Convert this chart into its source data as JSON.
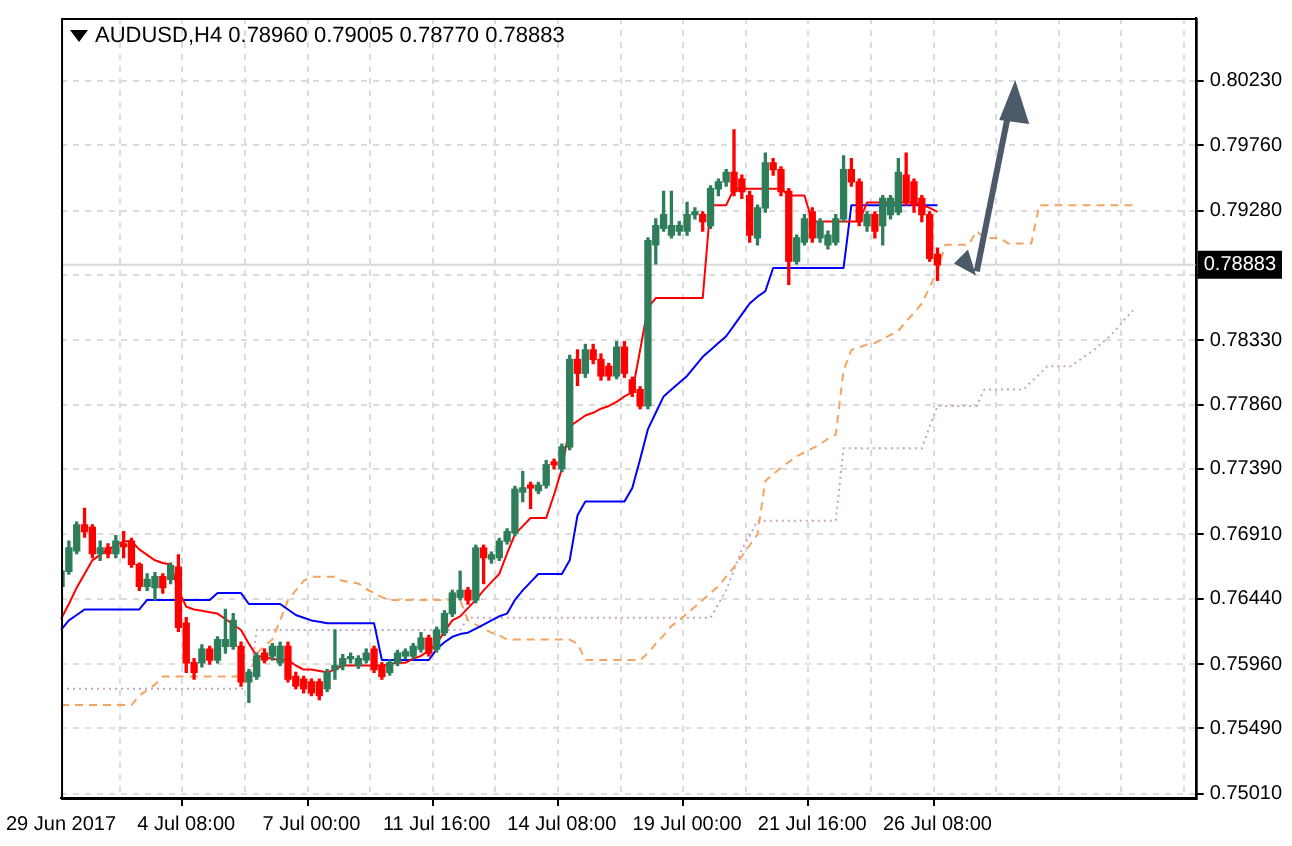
{
  "chart_data": {
    "type": "candlestick",
    "title": "AUDUSD,H4  0.78960 0.79005 0.78770 0.78883",
    "categories": [
      "29 Jun 2017",
      null,
      null,
      null,
      null,
      null,
      null,
      null,
      null,
      null,
      null,
      null,
      null,
      null,
      null,
      null,
      "4 Jul 08:00",
      null,
      null,
      null,
      null,
      null,
      null,
      null,
      null,
      null,
      null,
      null,
      null,
      null,
      null,
      null,
      "7 Jul 00:00",
      null,
      null,
      null,
      null,
      null,
      null,
      null,
      null,
      null,
      null,
      null,
      null,
      null,
      null,
      null,
      "11 Jul 16:00",
      null,
      null,
      null,
      null,
      null,
      null,
      null,
      null,
      null,
      null,
      null,
      null,
      null,
      null,
      null,
      "14 Jul 08:00",
      null,
      null,
      null,
      null,
      null,
      null,
      null,
      null,
      null,
      null,
      null,
      null,
      null,
      null,
      null,
      "19 Jul 00:00",
      null,
      null,
      null,
      null,
      null,
      null,
      null,
      null,
      null,
      null,
      null,
      null,
      null,
      null,
      null,
      "21 Jul 16:00",
      null,
      null,
      null,
      null,
      null,
      null,
      null,
      null,
      null,
      null,
      null,
      null,
      null,
      null,
      null,
      "26 Jul 08:00",
      null,
      null,
      null,
      null,
      null,
      null,
      null,
      null,
      null,
      null,
      null,
      null,
      null,
      null,
      null,
      null,
      null,
      null,
      null,
      null,
      null,
      null,
      null,
      null,
      null,
      null,
      null,
      null,
      null,
      null,
      null,
      null,
      null
    ],
    "ohlc": [
      [
        0.7653,
        0.7668,
        0.765,
        0.7664
      ],
      [
        0.7664,
        0.7686,
        0.7662,
        0.7681
      ],
      [
        0.7679,
        0.77,
        0.7677,
        0.7698
      ],
      [
        0.7698,
        0.771,
        0.7689,
        0.7693
      ],
      [
        0.7696,
        0.7698,
        0.7674,
        0.7677
      ],
      [
        0.7677,
        0.7686,
        0.7672,
        0.7681
      ],
      [
        0.7681,
        0.7684,
        0.7674,
        0.7677
      ],
      [
        0.7677,
        0.769,
        0.7674,
        0.7686
      ],
      [
        0.7684,
        0.7693,
        0.7674,
        0.7682
      ],
      [
        0.7686,
        0.7688,
        0.7667,
        0.7669
      ],
      [
        0.7669,
        0.767,
        0.765,
        0.7653
      ],
      [
        0.7653,
        0.7662,
        0.765,
        0.7658
      ],
      [
        0.7652,
        0.7663,
        0.7643,
        0.766
      ],
      [
        0.766,
        0.7662,
        0.7648,
        0.7652
      ],
      [
        0.7658,
        0.767,
        0.7655,
        0.7668
      ],
      [
        0.7667,
        0.7676,
        0.762,
        0.7623
      ],
      [
        0.7626,
        0.763,
        0.759,
        0.7597
      ],
      [
        0.7597,
        0.76,
        0.7585,
        0.759
      ],
      [
        0.7597,
        0.761,
        0.7594,
        0.7607
      ],
      [
        0.7607,
        0.7609,
        0.7596,
        0.7599
      ],
      [
        0.7599,
        0.7616,
        0.7597,
        0.7614
      ],
      [
        0.7609,
        0.7636,
        0.7604,
        0.7614
      ],
      [
        0.7609,
        0.7633,
        0.7607,
        0.7628
      ],
      [
        0.7609,
        0.7612,
        0.758,
        0.7583
      ],
      [
        0.7583,
        0.7592,
        0.7568,
        0.759
      ],
      [
        0.7587,
        0.7604,
        0.7585,
        0.7602
      ],
      [
        0.7604,
        0.7607,
        0.7597,
        0.7599
      ],
      [
        0.7602,
        0.7611,
        0.7599,
        0.7609
      ],
      [
        0.7597,
        0.7612,
        0.7595,
        0.7609
      ],
      [
        0.7609,
        0.7612,
        0.7583,
        0.7585
      ],
      [
        0.7587,
        0.759,
        0.7578,
        0.758
      ],
      [
        0.7585,
        0.7587,
        0.7575,
        0.7578
      ],
      [
        0.7583,
        0.7585,
        0.7573,
        0.7575
      ],
      [
        0.7583,
        0.7585,
        0.757,
        0.7573
      ],
      [
        0.7578,
        0.7592,
        0.7576,
        0.759
      ],
      [
        0.7592,
        0.7621,
        0.7585,
        0.7595
      ],
      [
        0.7595,
        0.7603,
        0.7592,
        0.76
      ],
      [
        0.76,
        0.7604,
        0.7597,
        0.7601
      ],
      [
        0.7595,
        0.7602,
        0.7593,
        0.76
      ],
      [
        0.7599,
        0.7607,
        0.7597,
        0.7604
      ],
      [
        0.7607,
        0.7609,
        0.759,
        0.7592
      ],
      [
        0.7595,
        0.7597,
        0.7585,
        0.7587
      ],
      [
        0.759,
        0.7599,
        0.7588,
        0.7597
      ],
      [
        0.7597,
        0.7606,
        0.7595,
        0.7604
      ],
      [
        0.7602,
        0.7607,
        0.76,
        0.7605
      ],
      [
        0.7602,
        0.7611,
        0.76,
        0.7609
      ],
      [
        0.7607,
        0.7619,
        0.7605,
        0.7615
      ],
      [
        0.7615,
        0.7617,
        0.7602,
        0.7604
      ],
      [
        0.7607,
        0.7623,
        0.7605,
        0.7621
      ],
      [
        0.7619,
        0.7635,
        0.7617,
        0.7633
      ],
      [
        0.7633,
        0.765,
        0.7631,
        0.7648
      ],
      [
        0.7645,
        0.7664,
        0.7643,
        0.765
      ],
      [
        0.765,
        0.7652,
        0.764,
        0.7643
      ],
      [
        0.7643,
        0.7683,
        0.7641,
        0.7681
      ],
      [
        0.7681,
        0.7683,
        0.7655,
        0.7674
      ],
      [
        0.7673,
        0.7678,
        0.767,
        0.7676
      ],
      [
        0.7674,
        0.7688,
        0.7672,
        0.7686
      ],
      [
        0.7686,
        0.7695,
        0.7684,
        0.7693
      ],
      [
        0.7692,
        0.7726,
        0.769,
        0.7724
      ],
      [
        0.7722,
        0.7737,
        0.7715,
        0.7725
      ],
      [
        0.7727,
        0.7729,
        0.771,
        0.7725
      ],
      [
        0.7723,
        0.7729,
        0.7721,
        0.7727
      ],
      [
        0.7727,
        0.7745,
        0.7725,
        0.7742
      ],
      [
        0.7744,
        0.7746,
        0.7739,
        0.7742
      ],
      [
        0.7739,
        0.7757,
        0.7737,
        0.7755
      ],
      [
        0.7755,
        0.7822,
        0.7753,
        0.7819
      ],
      [
        0.7819,
        0.7826,
        0.78,
        0.7809
      ],
      [
        0.7809,
        0.783,
        0.7806,
        0.7826
      ],
      [
        0.7826,
        0.783,
        0.7816,
        0.7819
      ],
      [
        0.7819,
        0.7823,
        0.7804,
        0.7807
      ],
      [
        0.7814,
        0.7816,
        0.7804,
        0.7807
      ],
      [
        0.7807,
        0.7832,
        0.7805,
        0.7828
      ],
      [
        0.7828,
        0.7832,
        0.7806,
        0.7809
      ],
      [
        0.7804,
        0.7806,
        0.7792,
        0.7795
      ],
      [
        0.7797,
        0.7799,
        0.7783,
        0.7785
      ],
      [
        0.7785,
        0.7908,
        0.7783,
        0.7906
      ],
      [
        0.7903,
        0.7922,
        0.7889,
        0.7917
      ],
      [
        0.7915,
        0.7942,
        0.7913,
        0.7925
      ],
      [
        0.791,
        0.7942,
        0.7908,
        0.7917
      ],
      [
        0.7913,
        0.792,
        0.791,
        0.7917
      ],
      [
        0.7913,
        0.7934,
        0.791,
        0.7925
      ],
      [
        0.7925,
        0.793,
        0.7922,
        0.7927
      ],
      [
        0.7925,
        0.7927,
        0.7913,
        0.792
      ],
      [
        0.7917,
        0.7946,
        0.7915,
        0.7944
      ],
      [
        0.7944,
        0.7951,
        0.7939,
        0.7949
      ],
      [
        0.7949,
        0.7958,
        0.7946,
        0.7956
      ],
      [
        0.7956,
        0.7987,
        0.7939,
        0.7942
      ],
      [
        0.7951,
        0.7954,
        0.7937,
        0.7942
      ],
      [
        0.7939,
        0.7942,
        0.7905,
        0.791
      ],
      [
        0.7908,
        0.7932,
        0.7903,
        0.793
      ],
      [
        0.793,
        0.797,
        0.7927,
        0.7963
      ],
      [
        0.7963,
        0.7966,
        0.7954,
        0.7958
      ],
      [
        0.7958,
        0.796,
        0.7939,
        0.7942
      ],
      [
        0.7942,
        0.7944,
        0.7874,
        0.7891
      ],
      [
        0.7891,
        0.791,
        0.7889,
        0.7908
      ],
      [
        0.7905,
        0.7925,
        0.7903,
        0.7922
      ],
      [
        0.7927,
        0.793,
        0.7905,
        0.7908
      ],
      [
        0.7908,
        0.7922,
        0.7905,
        0.792
      ],
      [
        0.7903,
        0.7913,
        0.79,
        0.791
      ],
      [
        0.7905,
        0.7925,
        0.7903,
        0.7922
      ],
      [
        0.7922,
        0.7968,
        0.792,
        0.7958
      ],
      [
        0.7958,
        0.7966,
        0.7946,
        0.7949
      ],
      [
        0.7949,
        0.7951,
        0.7917,
        0.792
      ],
      [
        0.7917,
        0.7927,
        0.7913,
        0.7925
      ],
      [
        0.7925,
        0.7927,
        0.7908,
        0.7913
      ],
      [
        0.7917,
        0.7939,
        0.7903,
        0.7937
      ],
      [
        0.7925,
        0.7939,
        0.7922,
        0.7937
      ],
      [
        0.7927,
        0.7966,
        0.7925,
        0.7956
      ],
      [
        0.7954,
        0.797,
        0.7932,
        0.7934
      ],
      [
        0.7949,
        0.7951,
        0.7927,
        0.7932
      ],
      [
        0.7937,
        0.7939,
        0.792,
        0.7925
      ],
      [
        0.7925,
        0.7927,
        0.7891,
        0.7893
      ],
      [
        0.7896,
        0.79005,
        0.7877,
        0.78883
      ],
      null,
      null,
      null,
      null,
      null,
      null,
      null,
      null,
      null,
      null,
      null,
      null,
      null,
      null,
      null,
      null,
      null,
      null,
      null,
      null,
      null,
      null,
      null,
      null,
      null,
      null,
      null,
      null,
      null,
      null,
      null,
      null,
      null
    ],
    "colors": [
      "#2e7d5b",
      "#2e7d5b",
      "#2e7d5b",
      "#ff0000",
      "#ff0000",
      "#2e7d5b",
      "#ff0000",
      "#2e7d5b",
      "#ff0000",
      "#ff0000",
      "#ff0000",
      "#2e7d5b",
      "#2e7d5b",
      "#ff0000",
      "#2e7d5b",
      "#ff0000",
      "#ff0000",
      "#ff0000",
      "#2e7d5b",
      "#ff0000",
      "#2e7d5b",
      "#2e7d5b",
      "#2e7d5b",
      "#ff0000",
      "#2e7d5b",
      "#2e7d5b",
      "#ff0000",
      "#2e7d5b",
      "#2e7d5b",
      "#ff0000",
      "#ff0000",
      "#ff0000",
      "#ff0000",
      "#ff0000",
      "#2e7d5b",
      "#2e7d5b",
      "#2e7d5b",
      "#2e7d5b",
      "#2e7d5b",
      "#2e7d5b",
      "#ff0000",
      "#ff0000",
      "#2e7d5b",
      "#2e7d5b",
      "#2e7d5b",
      "#2e7d5b",
      "#2e7d5b",
      "#ff0000",
      "#2e7d5b",
      "#2e7d5b",
      "#2e7d5b",
      "#2e7d5b",
      "#ff0000",
      "#2e7d5b",
      "#ff0000",
      "#2e7d5b",
      "#2e7d5b",
      "#2e7d5b",
      "#2e7d5b",
      "#2e7d5b",
      "#ff0000",
      "#2e7d5b",
      "#2e7d5b",
      "#ff0000",
      "#2e7d5b",
      "#2e7d5b",
      "#ff0000",
      "#2e7d5b",
      "#ff0000",
      "#ff0000",
      "#ff0000",
      "#2e7d5b",
      "#ff0000",
      "#ff0000",
      "#ff0000",
      "#2e7d5b",
      "#2e7d5b",
      "#2e7d5b",
      "#2e7d5b",
      "#2e7d5b",
      "#2e7d5b",
      "#2e7d5b",
      "#ff0000",
      "#2e7d5b",
      "#2e7d5b",
      "#2e7d5b",
      "#ff0000",
      "#ff0000",
      "#ff0000",
      "#2e7d5b",
      "#2e7d5b",
      "#ff0000",
      "#ff0000",
      "#ff0000",
      "#2e7d5b",
      "#2e7d5b",
      "#ff0000",
      "#2e7d5b",
      "#2e7d5b",
      "#2e7d5b",
      "#2e7d5b",
      "#ff0000",
      "#ff0000",
      "#2e7d5b",
      "#ff0000",
      "#2e7d5b",
      "#2e7d5b",
      "#2e7d5b",
      "#ff0000",
      "#ff0000",
      "#ff0000",
      "#ff0000",
      "#ff0000",
      null,
      null,
      null,
      null,
      null,
      null,
      null,
      null,
      null,
      null,
      null,
      null,
      null,
      null,
      null,
      null,
      null,
      null,
      null,
      null,
      null,
      null,
      null,
      null,
      null,
      null,
      null,
      null,
      null,
      null,
      null,
      null,
      null
    ],
    "series": [
      {
        "type": "line",
        "color": "#ff0000",
        "line_style": "solid",
        "values": [
          0.7629,
          0.764,
          0.7652,
          0.7662,
          0.7672,
          0.7676,
          0.768,
          0.7683,
          0.7686,
          0.7686,
          0.768,
          0.7676,
          0.7672,
          0.767,
          0.7669,
          0.765,
          0.7638,
          0.7636,
          0.7635,
          0.7634,
          0.7633,
          0.7629,
          0.7625,
          0.7621,
          0.7611,
          0.7602,
          0.7601,
          0.76,
          0.7599,
          0.7599,
          0.7595,
          0.7592,
          0.7592,
          0.7591,
          0.759,
          0.7592,
          0.7595,
          0.7595,
          0.7595,
          0.7595,
          0.7595,
          0.7595,
          0.7596,
          0.7597,
          0.7597,
          0.76,
          0.7602,
          0.7606,
          0.7611,
          0.762,
          0.7628,
          0.7631,
          0.7637,
          0.7643,
          0.765,
          0.7656,
          0.7662,
          0.7677,
          0.7691,
          0.7697,
          0.7703,
          0.7703,
          0.7703,
          0.772,
          0.7739,
          0.777,
          0.7774,
          0.7778,
          0.778,
          0.7783,
          0.7785,
          0.7788,
          0.7792,
          0.7795,
          0.7826,
          0.7857,
          0.7864,
          0.7864,
          0.7864,
          0.7864,
          0.7864,
          0.7864,
          0.7864,
          0.7932,
          0.7932,
          0.7932,
          0.7944,
          0.7944,
          0.7944,
          0.7944,
          0.7944,
          0.7944,
          0.7944,
          0.7939,
          0.7939,
          0.7939,
          0.792,
          0.792,
          0.792,
          0.792,
          0.792,
          0.792,
          0.792,
          0.7934,
          0.7934,
          0.7934,
          0.7934,
          0.7934,
          0.7934,
          0.7934,
          0.7932,
          0.793,
          0.7927,
          null,
          null,
          null,
          null,
          null,
          null,
          null,
          null,
          null,
          null,
          null,
          null,
          null,
          null,
          null,
          null,
          null,
          null,
          null,
          null,
          null,
          null,
          null,
          null,
          null,
          null,
          null,
          null,
          null,
          null,
          null,
          null,
          null
        ]
      },
      {
        "type": "line",
        "color": "#0000ff",
        "line_style": "solid",
        "values": [
          0.7621,
          0.7628,
          0.7632,
          0.7636,
          0.7636,
          0.7636,
          0.7636,
          0.7636,
          0.7636,
          0.7636,
          0.7636,
          0.7643,
          0.7643,
          0.7643,
          0.7643,
          0.7643,
          0.7643,
          0.7643,
          0.7643,
          0.7643,
          0.7648,
          0.7648,
          0.7648,
          0.7648,
          0.764,
          0.764,
          0.764,
          0.764,
          0.764,
          0.7636,
          0.7632,
          0.763,
          0.7628,
          0.7627,
          0.7626,
          0.7626,
          0.7626,
          0.7626,
          0.7626,
          0.7626,
          0.7626,
          0.7599,
          0.7599,
          0.7599,
          0.7599,
          0.7599,
          0.7599,
          0.7599,
          0.7607,
          0.7612,
          0.7616,
          0.7618,
          0.7619,
          0.7622,
          0.7625,
          0.7628,
          0.7631,
          0.7633,
          0.7643,
          0.765,
          0.7656,
          0.7662,
          0.7662,
          0.7662,
          0.7662,
          0.7672,
          0.7705,
          0.7715,
          0.7715,
          0.7715,
          0.7715,
          0.7715,
          0.7715,
          0.7725,
          0.7746,
          0.7768,
          0.778,
          0.7792,
          0.7797,
          0.7802,
          0.7807,
          0.7814,
          0.7821,
          0.7826,
          0.7831,
          0.7836,
          0.7844,
          0.7852,
          0.786,
          0.7865,
          0.7869,
          0.7886,
          0.7886,
          0.7886,
          0.7886,
          0.7886,
          0.7886,
          0.7886,
          0.7886,
          0.7886,
          0.7886,
          0.7932,
          0.7932,
          0.7932,
          0.7932,
          0.7932,
          0.7932,
          0.7932,
          0.7932,
          0.7932,
          0.7932,
          0.7932,
          0.7932,
          null,
          null,
          null,
          null,
          null,
          null,
          null,
          null,
          null,
          null,
          null,
          null,
          null,
          null,
          null,
          null,
          null,
          null,
          null,
          null,
          null,
          null,
          null,
          null,
          null,
          null,
          null,
          null,
          null,
          null,
          null,
          null,
          null
        ]
      },
      {
        "type": "line",
        "color": "#f4a460",
        "line_style": "dashed",
        "values": [
          0.7566,
          0.7566,
          0.7566,
          0.7566,
          0.7566,
          0.7566,
          0.7566,
          0.7566,
          0.7566,
          0.7566,
          0.7573,
          0.7577,
          0.7581,
          0.7587,
          0.7587,
          0.7587,
          0.7587,
          0.7587,
          0.7587,
          0.7587,
          0.7587,
          0.7587,
          0.7587,
          0.7587,
          0.7587,
          0.7604,
          0.7609,
          0.7614,
          0.7628,
          0.7643,
          0.765,
          0.7657,
          0.766,
          0.766,
          0.766,
          0.766,
          0.7657,
          0.7656,
          0.7655,
          0.7651,
          0.7648,
          0.7645,
          0.7643,
          0.7643,
          0.7643,
          0.7643,
          0.7643,
          0.7643,
          0.7643,
          0.7643,
          0.7643,
          0.7643,
          0.7628,
          0.7625,
          0.7622,
          0.7619,
          0.7617,
          0.7614,
          0.7614,
          0.7614,
          0.7614,
          0.7614,
          0.7614,
          0.7614,
          0.7614,
          0.7614,
          0.7611,
          0.7599,
          0.7599,
          0.7599,
          0.7599,
          0.7599,
          0.7599,
          0.7599,
          0.7599,
          0.7604,
          0.7611,
          0.7617,
          0.7624,
          0.7628,
          0.7633,
          0.7638,
          0.7643,
          0.7648,
          0.7653,
          0.766,
          0.7667,
          0.7675,
          0.7683,
          0.7691,
          0.773,
          0.7735,
          0.774,
          0.7744,
          0.7748,
          0.7751,
          0.7754,
          0.7757,
          0.7761,
          0.7764,
          0.7811,
          0.7826,
          0.7828,
          0.783,
          0.7831,
          0.7834,
          0.7837,
          0.784,
          0.7847,
          0.7853,
          0.786,
          0.7872,
          0.7884,
          0.7903,
          0.7903,
          0.7903,
          0.7903,
          0.7913,
          0.7908,
          0.7908,
          0.7908,
          0.7904,
          0.7904,
          0.7904,
          0.7904,
          0.7932,
          0.7932,
          0.7932,
          0.7932,
          0.7932,
          0.7932,
          0.7932,
          0.7932,
          0.7932,
          0.7932,
          0.7932,
          0.7932,
          0.7932,
          null,
          null,
          null,
          null,
          null,
          null,
          null,
          null
        ]
      },
      {
        "type": "line",
        "color": "#c8a0c8",
        "line_style": "dotted",
        "values": [
          0.7578,
          0.7578,
          0.7578,
          0.7578,
          0.7578,
          0.7578,
          0.7578,
          0.7578,
          0.7578,
          0.7578,
          0.7578,
          0.7578,
          0.7578,
          0.7578,
          0.7578,
          0.7578,
          0.7578,
          0.7578,
          0.7578,
          0.7578,
          0.7578,
          0.7578,
          0.7578,
          0.7578,
          0.7578,
          0.7621,
          0.7621,
          0.7621,
          0.7621,
          0.7621,
          0.7621,
          0.7621,
          0.7621,
          0.7621,
          0.7621,
          0.7621,
          0.7621,
          0.7621,
          0.7621,
          0.7621,
          0.7621,
          0.7621,
          0.7621,
          0.7621,
          0.7621,
          0.7621,
          0.7621,
          0.7621,
          0.7621,
          0.7621,
          0.7621,
          0.7621,
          0.763,
          0.763,
          0.763,
          0.763,
          0.763,
          0.763,
          0.763,
          0.763,
          0.763,
          0.763,
          0.763,
          0.763,
          0.763,
          0.763,
          0.763,
          0.763,
          0.763,
          0.763,
          0.763,
          0.763,
          0.763,
          0.763,
          0.763,
          0.763,
          0.763,
          0.763,
          0.763,
          0.763,
          0.763,
          0.763,
          0.763,
          0.763,
          0.764,
          0.765,
          0.7665,
          0.768,
          0.769,
          0.7701,
          0.7701,
          0.7701,
          0.7701,
          0.7701,
          0.7701,
          0.7701,
          0.7701,
          0.7701,
          0.7701,
          0.7701,
          0.7754,
          0.7754,
          0.7754,
          0.7754,
          0.7754,
          0.7754,
          0.7754,
          0.7754,
          0.7754,
          0.7754,
          0.7754,
          0.777,
          0.7785,
          0.7785,
          0.7785,
          0.7785,
          0.7785,
          0.7785,
          0.7797,
          0.7797,
          0.7797,
          0.7797,
          0.7797,
          0.7797,
          0.7803,
          0.7808,
          0.7814,
          0.7814,
          0.7814,
          0.7814,
          0.7818,
          0.7822,
          0.7826,
          0.7831,
          0.7836,
          0.7842,
          0.7849,
          0.7855,
          null,
          null,
          null,
          null,
          null,
          null,
          null,
          null
        ]
      }
    ],
    "ylim": [
      0.7498,
      0.8069
    ],
    "yticks": [
      {
        "value": 0.8023,
        "label": "0.80230"
      },
      {
        "value": 0.7976,
        "label": "0.79760"
      },
      {
        "value": 0.7928,
        "label": "0.79280"
      },
      {
        "value": 0.7881,
        "label": null
      },
      {
        "value": 0.7833,
        "label": "0.78330"
      },
      {
        "value": 0.7786,
        "label": "0.77860"
      },
      {
        "value": 0.7739,
        "label": "0.77390"
      },
      {
        "value": 0.7691,
        "label": "0.76910"
      },
      {
        "value": 0.7644,
        "label": "0.76440"
      },
      {
        "value": 0.7596,
        "label": "0.75960"
      },
      {
        "value": 0.7549,
        "label": "0.75490"
      },
      {
        "value": 0.7501,
        "label": "0.75010"
      }
    ],
    "ref_lines": [
      {
        "axis": "y",
        "value": 0.78883,
        "label": "0.78883",
        "color": "#d8d8d8"
      }
    ],
    "grid": true
  }
}
